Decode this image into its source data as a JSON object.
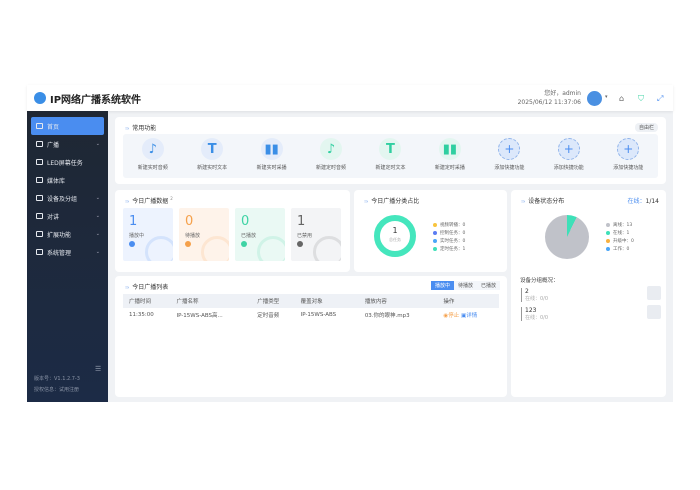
{
  "header": {
    "title": "IP网络广播系统软件",
    "greeting": "您好，admin",
    "datetime": "2025/06/12 11:37:06"
  },
  "sidebar": {
    "items": [
      {
        "label": "首页",
        "active": true
      },
      {
        "label": "广播",
        "chevron": true
      },
      {
        "label": "LED屏幕任务"
      },
      {
        "label": "媒体库"
      },
      {
        "label": "设备及分组",
        "chevron": true
      },
      {
        "label": "对讲",
        "chevron": true
      },
      {
        "label": "扩展功能",
        "chevron": true
      },
      {
        "label": "系统管理",
        "chevron": true
      }
    ],
    "version": "版本号：V1.1.2.7-3",
    "license": "授权信息：试用注册"
  },
  "quick": {
    "title": "常用功能",
    "tag": "自由栏",
    "items": [
      {
        "label": "新建实时音频",
        "icon": "music-note-icon"
      },
      {
        "label": "新建实时文本",
        "icon": "text-icon"
      },
      {
        "label": "新建实时采播",
        "icon": "collect-icon"
      },
      {
        "label": "新建定时音频",
        "icon": "music-note-icon"
      },
      {
        "label": "新建定时文本",
        "icon": "text-icon"
      },
      {
        "label": "新建定时采播",
        "icon": "collect-icon"
      },
      {
        "label": "添加快捷功能",
        "icon": "plus-icon"
      },
      {
        "label": "添加快捷功能",
        "icon": "plus-icon"
      },
      {
        "label": "添加快捷功能",
        "icon": "plus-icon"
      }
    ]
  },
  "today_stats": {
    "title": "今日广播数据",
    "sup": "2",
    "items": [
      {
        "value": "1",
        "label": "播放中",
        "color": "#4a8df0",
        "bg": "#edf3fe"
      },
      {
        "value": "0",
        "label": "待播放",
        "color": "#f5a04a",
        "bg": "#fef3ea"
      },
      {
        "value": "0",
        "label": "已播放",
        "color": "#3ed3a4",
        "bg": "#eaf9f4"
      },
      {
        "value": "1",
        "label": "已禁用",
        "color": "#666666",
        "bg": "#f3f4f6"
      }
    ]
  },
  "task_ratio": {
    "title": "今日广播分类占比",
    "total": "1",
    "total_label": "总任务",
    "legend": [
      {
        "label": "视频转播：0",
        "color": "#f8c43e"
      },
      {
        "label": "控制任务：0",
        "color": "#5b7cf2"
      },
      {
        "label": "实时任务：0",
        "color": "#4aa6f8"
      },
      {
        "label": "定时任务：1",
        "color": "#3ee0b8"
      }
    ]
  },
  "device": {
    "title": "设备状态分布",
    "online_label": "在线：",
    "online_value": "1/14",
    "legend": [
      {
        "label": "离线：13",
        "color": "#c0c2c9",
        "value": 13
      },
      {
        "label": "在线：1",
        "color": "#3ee0b8",
        "value": 1
      },
      {
        "label": "升级中：0",
        "color": "#f8b03e",
        "value": 0
      },
      {
        "label": "工作：0",
        "color": "#4aa6f8",
        "value": 0
      }
    ],
    "groups_title": "设备分组概况：",
    "groups": [
      {
        "name": "2",
        "online": "在线：0/0"
      },
      {
        "name": "123",
        "online": "在线：0/0"
      }
    ]
  },
  "list": {
    "title": "今日广播列表",
    "filters": [
      "播放中",
      "待播放",
      "已播放"
    ],
    "active_filter": 0,
    "columns": [
      "广播时间",
      "广播名称",
      "广播类型",
      "覆盖对象",
      "播放内容",
      "操作"
    ],
    "rows": [
      {
        "time": "11:35:00",
        "name": "IP-15WS-ABS高...",
        "type": "定时音频",
        "target": "IP-15WS-ABS",
        "content": "03.你的眼神.mp3",
        "stop": "停止",
        "detail": "详情"
      }
    ]
  }
}
